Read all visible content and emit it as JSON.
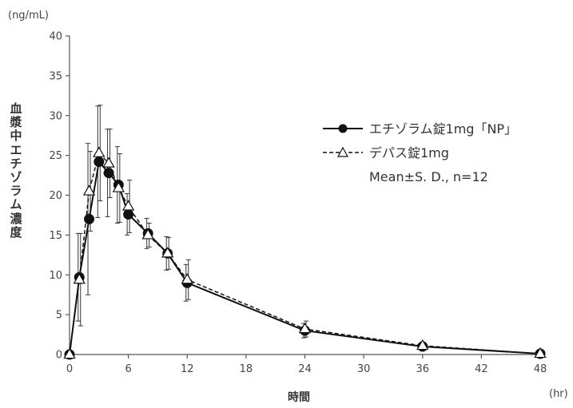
{
  "chart_data": {
    "type": "line",
    "ylabel": "血漿中エチゾラム濃度",
    "xlabel": "時間",
    "y_unit": "(ng/mL)",
    "x_unit": "(hr)",
    "xlim": [
      0,
      48
    ],
    "ylim": [
      0,
      40
    ],
    "x_ticks": [
      0,
      6,
      12,
      18,
      24,
      30,
      36,
      42,
      48
    ],
    "y_ticks": [
      0,
      5,
      10,
      15,
      20,
      25,
      30,
      35,
      40
    ],
    "legend_note": "Mean±S. D., n=12",
    "legend_position": "upper-right",
    "series": [
      {
        "name": "エチゾラム錠1mg「NP」",
        "marker": "filled-circle",
        "line_style": "solid",
        "x": [
          0,
          1,
          2,
          3,
          4,
          5,
          6,
          8,
          10,
          12,
          24,
          36,
          48
        ],
        "y": [
          0,
          9.7,
          17.0,
          24.2,
          22.8,
          21.3,
          17.6,
          15.2,
          12.7,
          9.0,
          3.0,
          1.0,
          0.1
        ],
        "err": [
          0,
          5.5,
          9.5,
          7.0,
          5.5,
          4.8,
          2.6,
          1.9,
          2.1,
          2.3,
          0.9,
          0.4,
          0.1
        ]
      },
      {
        "name": "デパス錠1mg",
        "marker": "open-triangle",
        "line_style": "dashed",
        "x": [
          0,
          1,
          2,
          3,
          4,
          5,
          6,
          8,
          10,
          12,
          24,
          36,
          48
        ],
        "y": [
          0,
          9.4,
          20.5,
          25.3,
          24.0,
          20.9,
          18.6,
          15.0,
          12.7,
          9.4,
          3.2,
          1.1,
          0.1
        ],
        "err": [
          0,
          5.8,
          5.0,
          6.0,
          4.3,
          4.3,
          3.3,
          1.5,
          2.0,
          2.5,
          1.0,
          0.4,
          0.1
        ]
      }
    ]
  }
}
